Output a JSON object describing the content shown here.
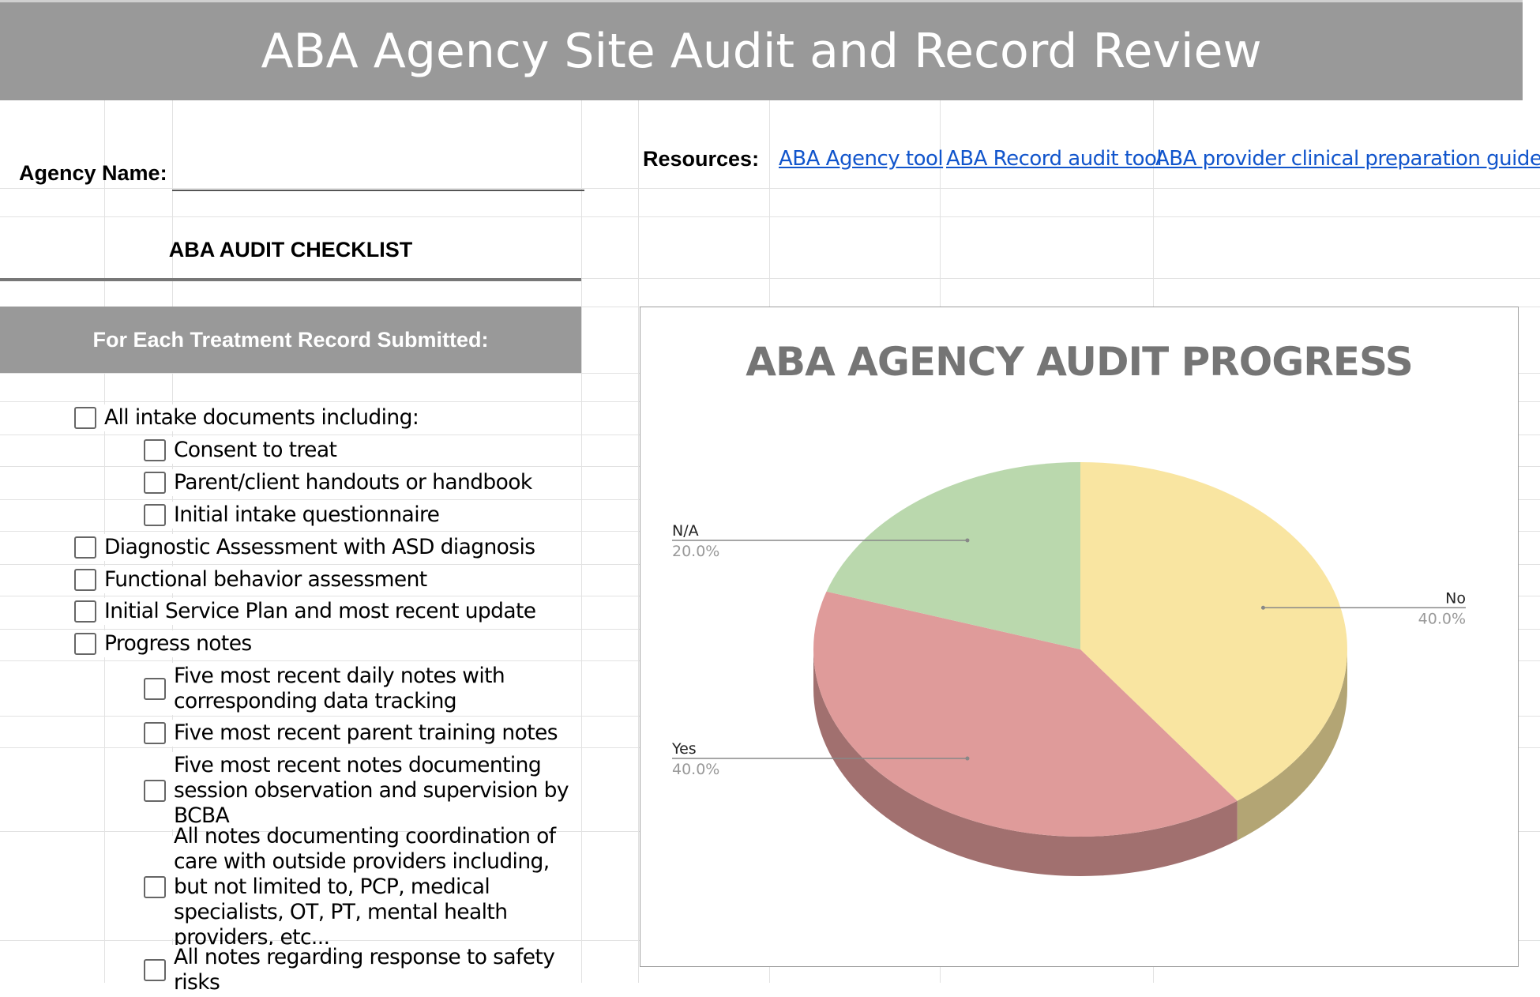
{
  "header": {
    "title": "ABA Agency Site Audit and Record Review"
  },
  "agency": {
    "label": "Agency Name:",
    "value": "",
    "placeholder": ""
  },
  "resources": {
    "label": "Resources:",
    "links": [
      "ABA Agency tool",
      "ABA Record audit tool",
      "ABA provider clinical preparation guide"
    ],
    "link_color": "#1155cc"
  },
  "checklist": {
    "heading": "ABA AUDIT CHECKLIST",
    "section_header": "For Each Treatment Record Submitted:",
    "items": [
      {
        "label": "All intake documents including:",
        "checked": false,
        "level": 0
      },
      {
        "label": "Consent to treat",
        "checked": false,
        "level": 1
      },
      {
        "label": "Parent/client handouts or handbook",
        "checked": false,
        "level": 1
      },
      {
        "label": "Initial intake questionnaire",
        "checked": false,
        "level": 1
      },
      {
        "label": "Diagnostic Assessment with ASD diagnosis",
        "checked": false,
        "level": 0
      },
      {
        "label": "Functional behavior assessment",
        "checked": false,
        "level": 0
      },
      {
        "label": "Initial Service Plan and most recent update",
        "checked": false,
        "level": 0
      },
      {
        "label": "Progress notes",
        "checked": false,
        "level": 0
      },
      {
        "label": "Five most recent daily notes with corresponding data tracking",
        "checked": false,
        "level": 1
      },
      {
        "label": "Five most recent parent training notes",
        "checked": false,
        "level": 1
      },
      {
        "label": "Five most recent notes documenting session observation and supervision by BCBA",
        "checked": false,
        "level": 1
      },
      {
        "label": "All notes documenting coordination of care with outside providers including, but not limited to, PCP, medical specialists, OT, PT, mental health providers, etc...",
        "checked": false,
        "level": 1
      },
      {
        "label": "All notes regarding response to safety risks",
        "checked": false,
        "level": 1
      }
    ]
  },
  "chart_data": {
    "type": "pie",
    "title": "ABA AGENCY AUDIT PROGRESS",
    "style": "3d",
    "slices": [
      {
        "label": "No",
        "value": 40.0,
        "pct_label": "40.0%",
        "color": "#f9e5a1"
      },
      {
        "label": "Yes",
        "value": 40.0,
        "pct_label": "40.0%",
        "color": "#df9b9a"
      },
      {
        "label": "N/A",
        "value": 20.0,
        "pct_label": "20.0%",
        "color": "#bad8ad"
      }
    ]
  }
}
